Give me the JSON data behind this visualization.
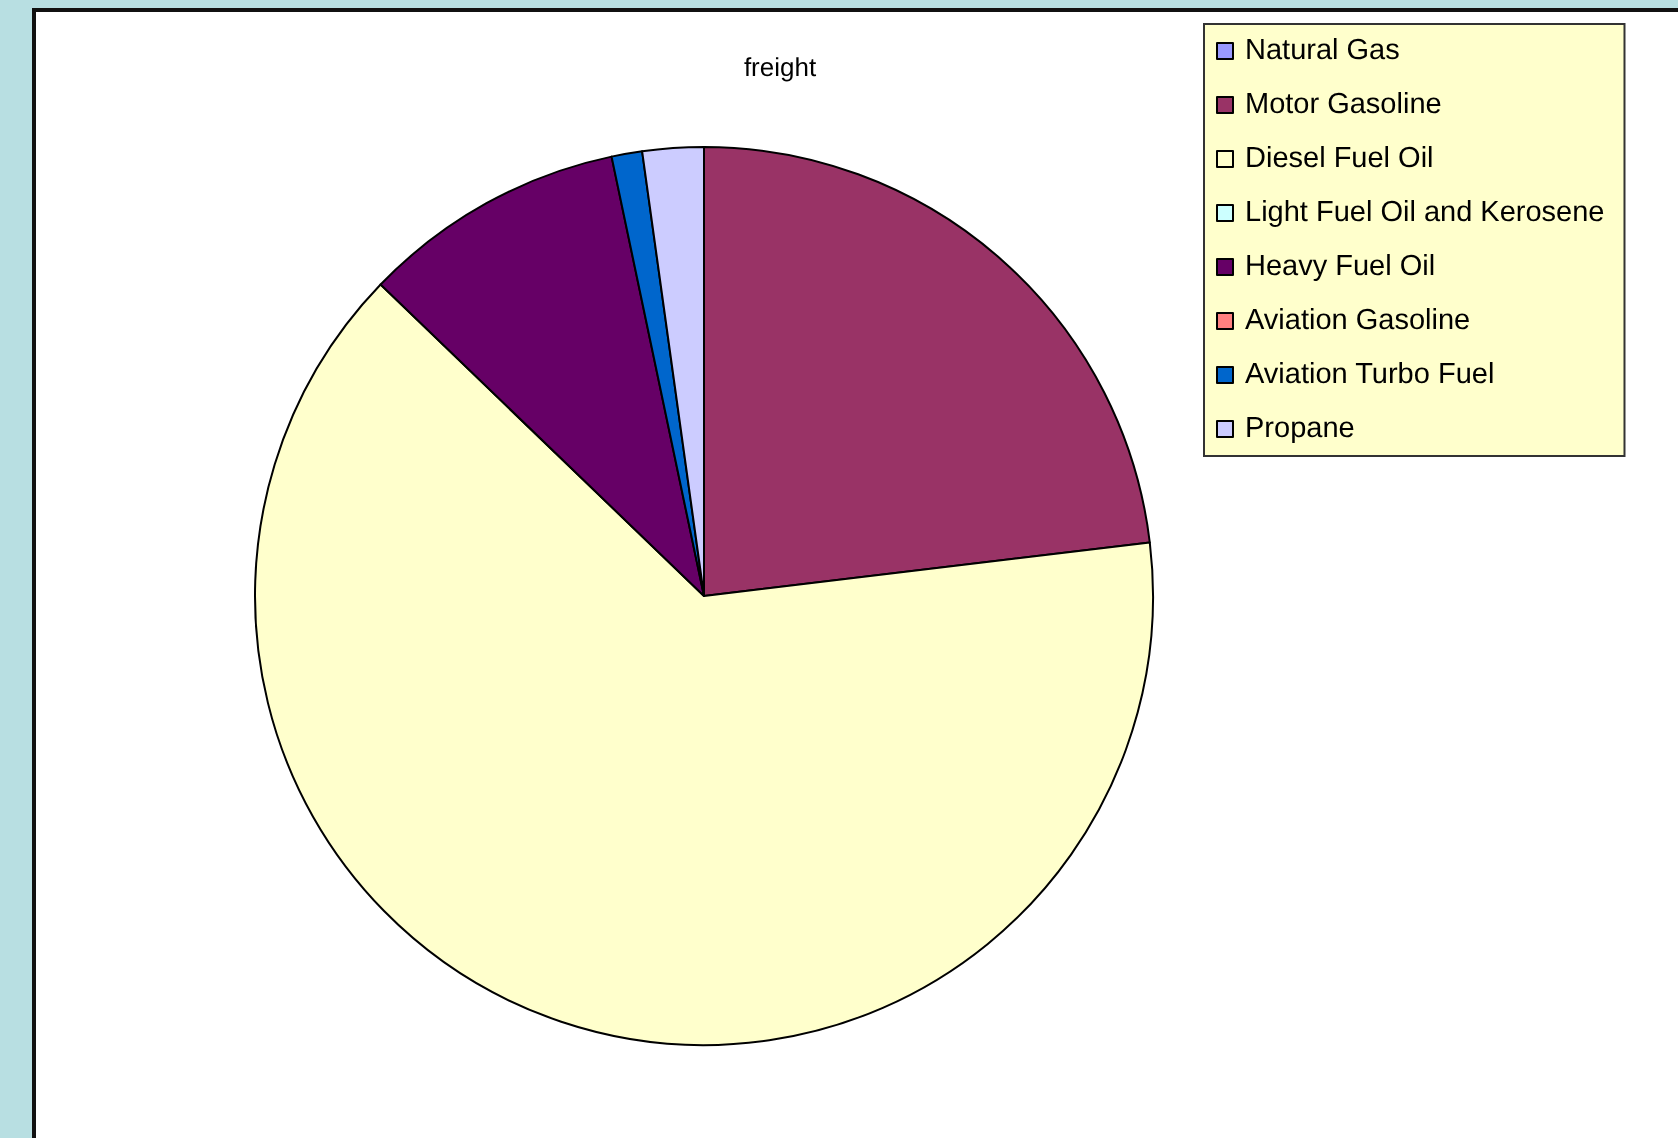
{
  "chart_data": {
    "type": "pie",
    "title": "freight",
    "categories": [
      "Natural Gas",
      "Motor Gasoline",
      "Diesel Fuel Oil",
      "Light Fuel Oil and Kerosene",
      "Heavy Fuel Oil",
      "Aviation Gasoline",
      "Aviation Turbo Fuel",
      "Propane"
    ],
    "values": [
      0,
      23.1,
      64.1,
      0,
      9.5,
      0,
      1.1,
      2.2
    ],
    "colors": [
      "#9999ff",
      "#993366",
      "#ffffcc",
      "#ccffff",
      "#660066",
      "#ff8080",
      "#0066cc",
      "#ccccff"
    ],
    "legend": "top right"
  }
}
